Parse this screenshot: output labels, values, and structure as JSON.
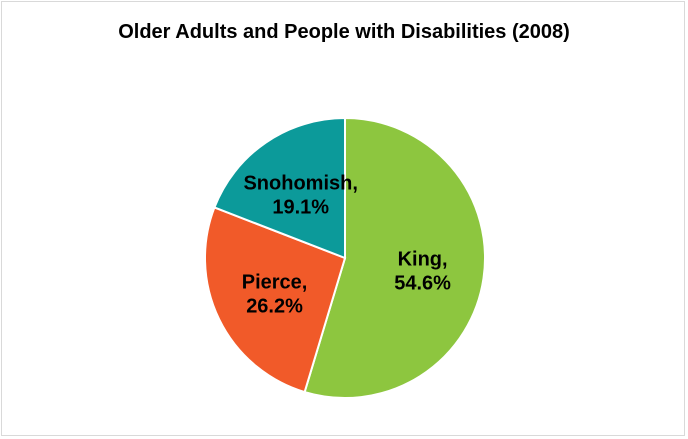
{
  "chart_data": {
    "type": "pie",
    "title": "Older Adults and People with Disabilities (2008)",
    "categories": [
      "King,",
      "Pierce,",
      "Snohomish,"
    ],
    "values": [
      54.6,
      26.2,
      19.1
    ],
    "value_labels": [
      "54.6%",
      "26.2%",
      "19.1%"
    ],
    "colors": [
      "#8dc63f",
      "#f15a29",
      "#0c9a9a"
    ]
  }
}
